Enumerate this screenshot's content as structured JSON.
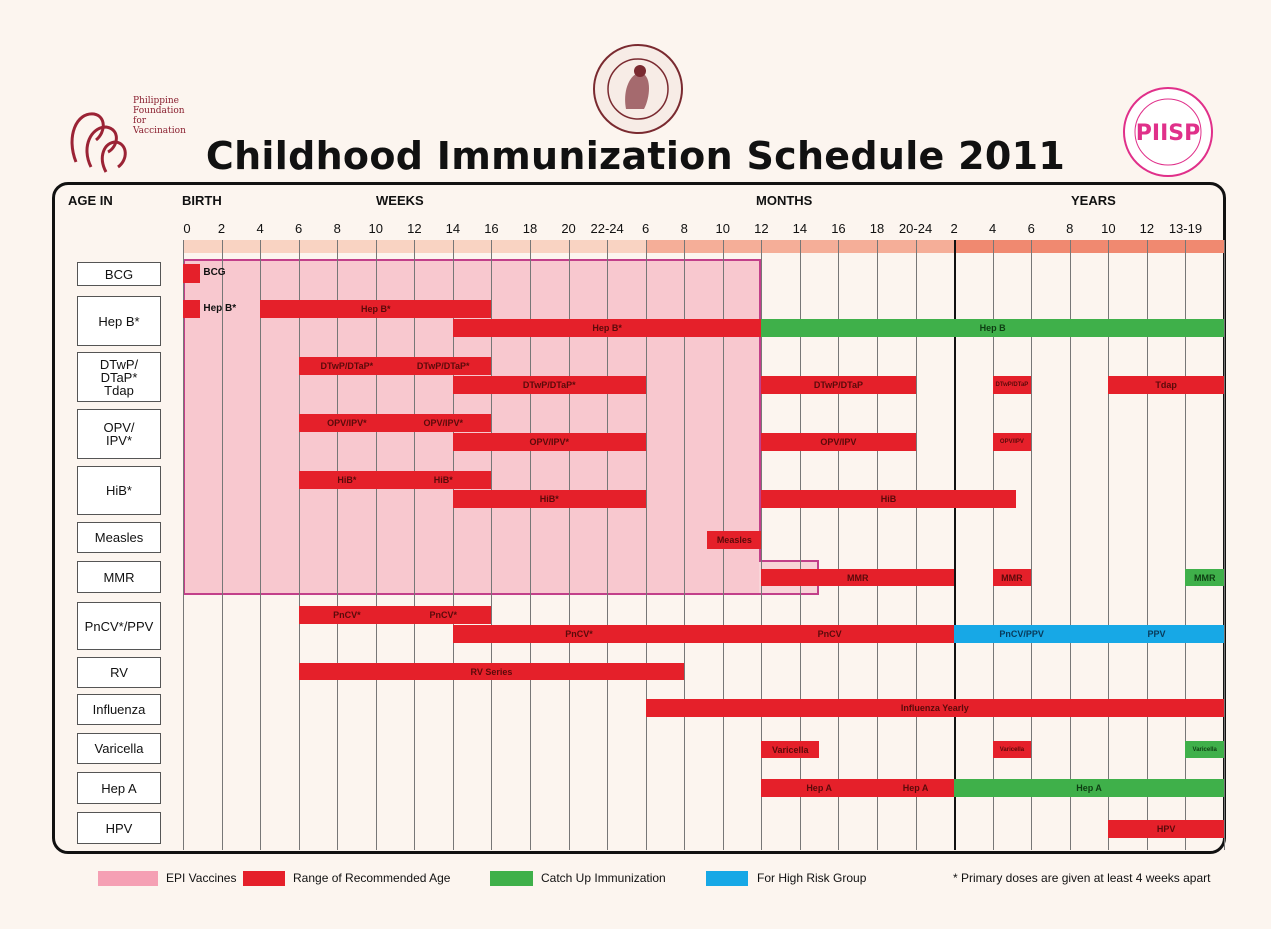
{
  "title": "Childhood Immunization Schedule 2011",
  "logos": {
    "left": "Philippine Foundation for Vaccination",
    "center": "PHILIPPINE PEDIATRIC SOCIETY 1947",
    "right": "PIDSP"
  },
  "header": {
    "age_in": "AGE IN",
    "birth": "BIRTH",
    "weeks": "WEEKS",
    "months": "MONTHS",
    "years": "YEARS"
  },
  "colors": {
    "epi": "#f5a9b8",
    "recommended": "#e5202a",
    "catch_up": "#3fb04a",
    "high_risk": "#17a8e6"
  },
  "chart_data": {
    "type": "gantt",
    "title": "Childhood Immunization Schedule 2011",
    "ticks": [
      "0",
      "2",
      "4",
      "6",
      "8",
      "10",
      "12",
      "14",
      "16",
      "18",
      "20",
      "22-24",
      "6",
      "8",
      "10",
      "12",
      "14",
      "16",
      "18",
      "20-24",
      "2",
      "4",
      "6",
      "8",
      "10",
      "12",
      "13-19"
    ],
    "tick_units": {
      "weeks": [
        0,
        11
      ],
      "months": [
        12,
        19
      ],
      "years": [
        20,
        26
      ]
    },
    "rows": [
      "BCG",
      "Hep B*",
      "DTwP/\nDTaP*\nTdap",
      "OPV/\nIPV*",
      "HiB*",
      "Measles",
      "MMR",
      "PnCV*/PPV",
      "RV",
      "Influenza",
      "Varicella",
      "Hep A",
      "HPV"
    ],
    "epi_range": {
      "from": 0,
      "to": 15,
      "mmr_to": 16.5
    },
    "bars": [
      {
        "row": 0,
        "lane": "single",
        "from": 0,
        "to": 0.45,
        "type": "recommended",
        "labels": [],
        "side_label": "BCG"
      },
      {
        "row": 1,
        "lane": "top",
        "from": 0,
        "to": 0.45,
        "type": "recommended",
        "labels": [],
        "side_label": "Hep B*"
      },
      {
        "row": 1,
        "lane": "top",
        "from": 2,
        "to": 8,
        "type": "recommended",
        "labels": [
          "Hep B*"
        ]
      },
      {
        "row": 1,
        "lane": "bottom",
        "from": 7,
        "to": 15,
        "type": "recommended",
        "labels": [
          "Hep B*"
        ]
      },
      {
        "row": 1,
        "lane": "bottom",
        "from": 15,
        "to": 27,
        "type": "catch_up",
        "labels": [
          "Hep B"
        ]
      },
      {
        "row": 2,
        "lane": "top",
        "from": 3,
        "to": 8,
        "type": "recommended",
        "labels": [
          "DTwP/DTaP*",
          "DTwP/DTaP*"
        ]
      },
      {
        "row": 2,
        "lane": "bottom",
        "from": 7,
        "to": 12,
        "type": "recommended",
        "labels": [
          "DTwP/DTaP*"
        ]
      },
      {
        "row": 2,
        "lane": "bottom",
        "from": 15,
        "to": 19,
        "type": "recommended",
        "labels": [
          "DTwP/DTaP"
        ]
      },
      {
        "row": 2,
        "lane": "bottom",
        "from": 21,
        "to": 22,
        "type": "recommended",
        "labels": [
          "DTwP/DTaP"
        ],
        "tiny": true
      },
      {
        "row": 2,
        "lane": "bottom",
        "from": 24,
        "to": 27,
        "type": "recommended",
        "labels": [
          "Tdap"
        ]
      },
      {
        "row": 3,
        "lane": "top",
        "from": 3,
        "to": 8,
        "type": "recommended",
        "labels": [
          "OPV/IPV*",
          "OPV/IPV*"
        ]
      },
      {
        "row": 3,
        "lane": "bottom",
        "from": 7,
        "to": 12,
        "type": "recommended",
        "labels": [
          "OPV/IPV*"
        ]
      },
      {
        "row": 3,
        "lane": "bottom",
        "from": 15,
        "to": 19,
        "type": "recommended",
        "labels": [
          "OPV/IPV"
        ]
      },
      {
        "row": 3,
        "lane": "bottom",
        "from": 21,
        "to": 22,
        "type": "recommended",
        "labels": [
          "OPV/IPV"
        ],
        "tiny": true
      },
      {
        "row": 4,
        "lane": "top",
        "from": 3,
        "to": 8,
        "type": "recommended",
        "labels": [
          "HiB*",
          "HiB*"
        ]
      },
      {
        "row": 4,
        "lane": "bottom",
        "from": 7,
        "to": 12,
        "type": "recommended",
        "labels": [
          "HiB*"
        ]
      },
      {
        "row": 4,
        "lane": "bottom",
        "from": 15,
        "to": 21.6,
        "type": "recommended",
        "labels": [
          "HiB"
        ]
      },
      {
        "row": 5,
        "lane": "single",
        "from": 13.6,
        "to": 15,
        "type": "recommended",
        "labels": [
          "Measles"
        ]
      },
      {
        "row": 6,
        "lane": "single",
        "from": 15,
        "to": 20,
        "type": "recommended",
        "labels": [
          "MMR"
        ]
      },
      {
        "row": 6,
        "lane": "single",
        "from": 21,
        "to": 22,
        "type": "recommended",
        "labels": [
          "MMR"
        ]
      },
      {
        "row": 6,
        "lane": "single",
        "from": 26,
        "to": 27,
        "type": "catch_up",
        "labels": [
          "MMR"
        ]
      },
      {
        "row": 7,
        "lane": "top",
        "from": 3,
        "to": 8,
        "type": "recommended",
        "labels": [
          "PnCV*",
          "PnCV*"
        ]
      },
      {
        "row": 7,
        "lane": "bottom",
        "from": 7,
        "to": 20,
        "type": "recommended",
        "labels": [
          "PnCV*",
          "PnCV"
        ]
      },
      {
        "row": 7,
        "lane": "bottom",
        "from": 20,
        "to": 23.5,
        "type": "high_risk",
        "labels": [
          "PnCV/PPV"
        ]
      },
      {
        "row": 7,
        "lane": "bottom",
        "from": 23.5,
        "to": 27,
        "type": "high_risk",
        "labels": [
          "PPV"
        ]
      },
      {
        "row": 8,
        "lane": "single",
        "from": 3,
        "to": 13,
        "type": "recommended",
        "labels": [
          "RV Series"
        ]
      },
      {
        "row": 9,
        "lane": "single",
        "from": 12,
        "to": 27,
        "type": "recommended",
        "labels": [
          "Influenza Yearly"
        ]
      },
      {
        "row": 10,
        "lane": "single",
        "from": 15,
        "to": 16.5,
        "type": "recommended",
        "labels": [
          "Varicella"
        ]
      },
      {
        "row": 10,
        "lane": "single",
        "from": 21,
        "to": 22,
        "type": "recommended",
        "labels": [
          "Varicella"
        ],
        "tiny": true
      },
      {
        "row": 10,
        "lane": "single",
        "from": 26,
        "to": 27,
        "type": "catch_up",
        "labels": [
          "Varicella"
        ],
        "tiny": true
      },
      {
        "row": 11,
        "lane": "single",
        "from": 15,
        "to": 18,
        "type": "recommended",
        "labels": [
          "Hep A"
        ]
      },
      {
        "row": 11,
        "lane": "single",
        "from": 18,
        "to": 20,
        "type": "recommended",
        "labels": [
          "Hep A"
        ]
      },
      {
        "row": 11,
        "lane": "single",
        "from": 20,
        "to": 27,
        "type": "catch_up",
        "labels": [
          "Hep A"
        ]
      },
      {
        "row": 12,
        "lane": "single",
        "from": 24,
        "to": 27,
        "type": "recommended",
        "labels": [
          "HPV"
        ]
      }
    ],
    "legend": [
      {
        "key": "epi",
        "label": "EPI Vaccines"
      },
      {
        "key": "recommended",
        "label": "Range of Recommended Age"
      },
      {
        "key": "catch_up",
        "label": "Catch Up Immunization"
      },
      {
        "key": "high_risk",
        "label": "For High Risk Group"
      }
    ],
    "legend_position": "bottom",
    "note": "* Primary doses are given at least 4 weeks apart"
  }
}
